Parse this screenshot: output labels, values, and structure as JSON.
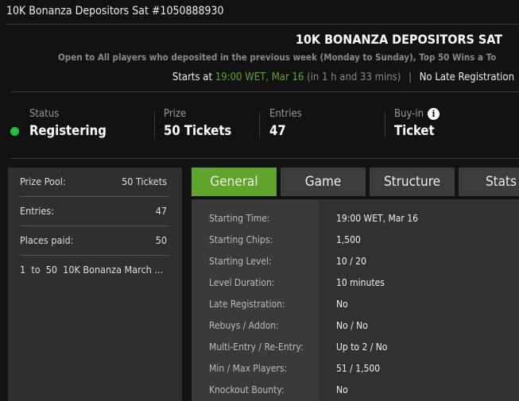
{
  "window_title": "10K Bonanza Depositors Sat #1050888930",
  "header": {
    "title": "10K BONANZA DEPOSITORS SAT",
    "description": "Open to All players who deposited in the previous week (Monday to Sunday), Top 50 Wins a To",
    "starts_prefix": "Starts at",
    "start_time": "19:00 WET, Mar 16",
    "countdown": "(in 1 h and 33 mins)",
    "separator": "|",
    "late_registration": "No Late Registration"
  },
  "stats": [
    {
      "label": "Status",
      "value": "Registering"
    },
    {
      "label": "Prize",
      "value": "50 Tickets"
    },
    {
      "label": "Entries",
      "value": "47"
    },
    {
      "label": "Buy-in",
      "value": "Ticket"
    }
  ],
  "status_color": "#1fc43a",
  "summary": {
    "prize_pool_label": "Prize Pool:",
    "prize_pool": "50 Tickets",
    "entries_label": "Entries:",
    "entries": "47",
    "places_label": "Places paid:",
    "places": "50",
    "payout": "1  to  50  10K Bonanza March ..."
  },
  "tabs": [
    {
      "label": "General",
      "active": true
    },
    {
      "label": "Game"
    },
    {
      "label": "Structure"
    },
    {
      "label": "Stats"
    }
  ],
  "accent": "#5fa52a",
  "general": [
    {
      "label": "Starting Time:",
      "value": "19:00 WET, Mar 16"
    },
    {
      "label": "Starting Chips:",
      "value": "1,500"
    },
    {
      "label": "Starting Level:",
      "value": "10 / 20"
    },
    {
      "label": "Level Duration:",
      "value": "10 minutes"
    },
    {
      "label": "Late Registration:",
      "value": "No"
    },
    {
      "label": "Rebuys / Addon:",
      "value": "No / No"
    },
    {
      "label": "Multi-Entry / Re-Entry:",
      "value": "Up to 2 / No"
    },
    {
      "label": "Min / Max Players:",
      "value": "51 / 1,500"
    },
    {
      "label": "Knockout Bounty:",
      "value": "No"
    }
  ]
}
